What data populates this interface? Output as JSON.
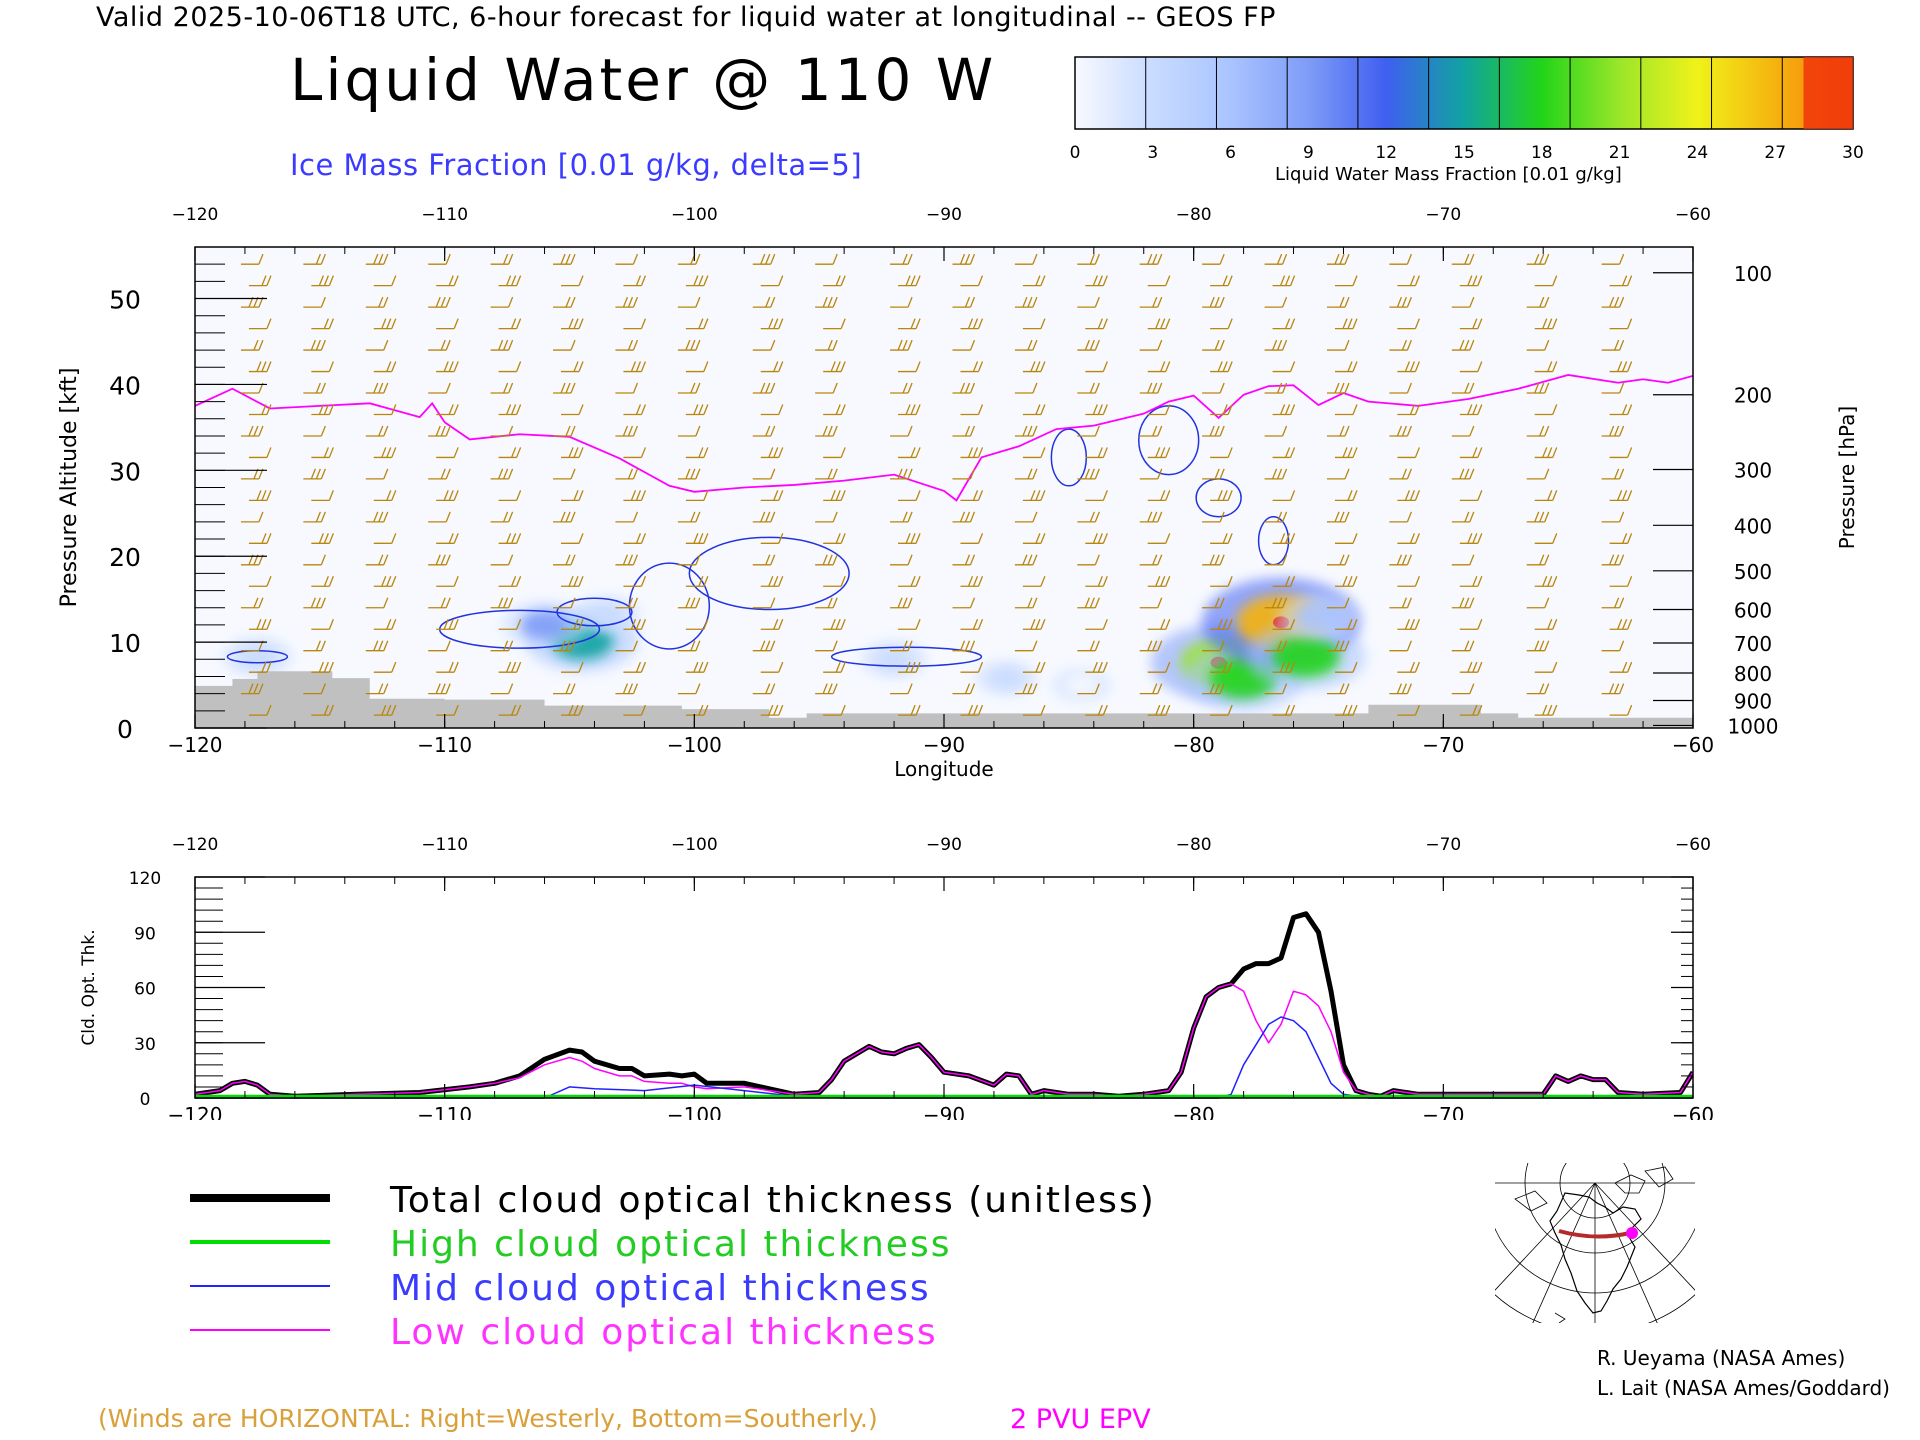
{
  "header": {
    "title": "Valid 2025-10-06T18 UTC, 6-hour forecast for liquid water at longitudinal -- GEOS FP",
    "main_title": "Liquid Water @ 110 W",
    "subtitle": "Ice Mass Fraction [0.01 g/kg, delta=5]"
  },
  "colorbar": {
    "label": "Liquid Water Mass Fraction [0.01 g/kg]",
    "ticks": [
      "0",
      "3",
      "6",
      "9",
      "12",
      "15",
      "18",
      "21",
      "24",
      "27",
      "30"
    ],
    "colors": [
      "#f7f9ff",
      "#c9dbff",
      "#a9c4ff",
      "#7f9cf7",
      "#3f5ff0",
      "#11a3a0",
      "#22d41a",
      "#9ae62a",
      "#f0f21a",
      "#f5b30f",
      "#f5760a"
    ]
  },
  "chart_data": [
    {
      "type": "heatmap",
      "name": "cross-section",
      "xlabel": "Longitude",
      "ylabel": "Pressure Altitude [kft]",
      "y2label": "Pressure [hPa]",
      "xlim": [
        -120,
        -60
      ],
      "ylim": [
        0,
        56
      ],
      "x_ticks": [
        "-120",
        "-110",
        "-100",
        "-90",
        "-80",
        "-70",
        "-60"
      ],
      "y_ticks": [
        "0",
        "10",
        "20",
        "30",
        "40",
        "50"
      ],
      "pressure_ticks": [
        {
          "label": "100",
          "alt": 53.0
        },
        {
          "label": "200",
          "alt": 38.8
        },
        {
          "label": "300",
          "alt": 30.1
        },
        {
          "label": "400",
          "alt": 23.6
        },
        {
          "label": "500",
          "alt": 18.3
        },
        {
          "label": "600",
          "alt": 13.8
        },
        {
          "label": "700",
          "alt": 9.9
        },
        {
          "label": "800",
          "alt": 6.4
        },
        {
          "label": "900",
          "alt": 3.2
        },
        {
          "label": "1000",
          "alt": 0.3
        }
      ],
      "epv_2pvu_line": {
        "color": "#ff00ff",
        "lon": [
          -120,
          -118.5,
          -117,
          -115,
          -113,
          -111,
          -110.5,
          -110,
          -109,
          -107,
          -105,
          -103,
          -101,
          -100,
          -98,
          -96,
          -94,
          -92,
          -90,
          -89.5,
          -88.5,
          -87,
          -85.5,
          -84,
          -82,
          -81,
          -80,
          -79,
          -78,
          -77,
          -76,
          -75,
          -74,
          -73,
          -71,
          -69,
          -67,
          -66,
          -65,
          -63,
          -62,
          -61,
          -60
        ],
        "alt": [
          37.5,
          39.5,
          37.2,
          37.5,
          37.8,
          36.2,
          37.8,
          35.6,
          33.6,
          34.2,
          33.9,
          31.4,
          28.2,
          27.5,
          28.0,
          28.3,
          28.8,
          29.5,
          27.6,
          26.5,
          31.5,
          32.8,
          34.8,
          35.2,
          36.6,
          38.0,
          38.7,
          36.1,
          38.8,
          39.8,
          39.9,
          37.6,
          39.0,
          38.0,
          37.5,
          38.3,
          39.5,
          40.3,
          41.1,
          40.2,
          40.6,
          40.2,
          41.0
        ]
      },
      "terrain": {
        "color": "#c0c0c0",
        "lon": [
          -120,
          -118.5,
          -118.5,
          -117.5,
          -117.5,
          -114.5,
          -114.5,
          -113,
          -113,
          -110,
          -110,
          -106,
          -106,
          -100.5,
          -100.5,
          -97,
          -97,
          -95.5,
          -95.5,
          -79.5,
          -79.5,
          -73,
          -73,
          -68.5,
          -68.5,
          -67,
          -67,
          -60
        ],
        "alt": [
          4.9,
          4.9,
          5.7,
          5.7,
          6.6,
          6.6,
          5.8,
          5.8,
          3.4,
          3.4,
          3.3,
          3.3,
          2.6,
          2.6,
          2.2,
          2.2,
          1.2,
          1.2,
          1.7,
          1.7,
          1.7,
          1.7,
          2.7,
          2.7,
          1.7,
          1.7,
          1.2,
          1.2
        ]
      },
      "liquid_water_blobs": [
        {
          "lon": -104.5,
          "alt": 10.2,
          "value": 16
        },
        {
          "lon": -106.0,
          "alt": 12.0,
          "value": 9
        },
        {
          "lon": -103.5,
          "alt": 13.2,
          "value": 4
        },
        {
          "lon": -117.5,
          "alt": 8.3,
          "value": 5
        },
        {
          "lon": -92.0,
          "alt": 8.0,
          "value": 4
        },
        {
          "lon": -87.5,
          "alt": 5.8,
          "value": 3
        },
        {
          "lon": -84.5,
          "alt": 5.0,
          "value": 2
        },
        {
          "lon": -79.0,
          "alt": 7.6,
          "value": 22
        },
        {
          "lon": -78.0,
          "alt": 5.8,
          "value": 18
        },
        {
          "lon": -76.5,
          "alt": 12.3,
          "value": 28
        },
        {
          "lon": -75.5,
          "alt": 8.3,
          "value": 18
        },
        {
          "lon": -75.0,
          "alt": 13.0,
          "value": 8
        }
      ],
      "wind_barbs": {
        "color": "#b8860b",
        "columns_lon": [
          -118,
          -115.5,
          -113,
          -110.5,
          -108,
          -105.5,
          -103,
          -100.5,
          -97.5,
          -95,
          -92,
          -89.5,
          -87,
          -84.5,
          -82,
          -79.5,
          -77,
          -74.5,
          -72,
          -69.5,
          -66.5,
          -63.5
        ],
        "levels_alt": [
          54,
          46,
          38,
          30,
          22,
          14,
          6
        ]
      }
    },
    {
      "type": "line",
      "name": "cloud-optical-thickness",
      "xlabel": "Longitude",
      "ylabel": "Cld. Opt. Thk.",
      "xlim": [
        -120,
        -60
      ],
      "ylim": [
        0,
        120
      ],
      "x_ticks": [
        "-120",
        "-110",
        "-100",
        "-90",
        "-80",
        "-70",
        "-60"
      ],
      "y_ticks": [
        "0",
        "30",
        "60",
        "90",
        "120"
      ],
      "series": [
        {
          "name": "Total cloud optical thickness (unitless)",
          "color": "#000000",
          "width": 5,
          "lon": [
            -120,
            -119,
            -118.5,
            -118,
            -117.5,
            -117,
            -116,
            -113.5,
            -111,
            -109,
            -108,
            -107,
            -106,
            -105,
            -104.5,
            -104,
            -103,
            -102.5,
            -102,
            -101,
            -100.5,
            -100,
            -99.5,
            -98,
            -96,
            -95,
            -94.5,
            -94,
            -93,
            -92.5,
            -92,
            -91.5,
            -91,
            -90.5,
            -90,
            -89,
            -88,
            -87.5,
            -87,
            -86.5,
            -86,
            -85,
            -84,
            -83,
            -82,
            -81,
            -80.5,
            -80,
            -79.5,
            -79,
            -78.5,
            -78,
            -77.5,
            -77,
            -76.5,
            -76,
            -75.5,
            -75,
            -74.5,
            -74,
            -73.5,
            -73,
            -72.5,
            -72,
            -71,
            -68,
            -66,
            -65.5,
            -65,
            -64.5,
            -64,
            -63.5,
            -63,
            -62,
            -60.5,
            -60
          ],
          "values": [
            2,
            4,
            8,
            9,
            7,
            2,
            1,
            2,
            3,
            6,
            8,
            12,
            21,
            26,
            25,
            20,
            16,
            16,
            12,
            13,
            12,
            13,
            8,
            8,
            2,
            3,
            10,
            20,
            28,
            25,
            24,
            27,
            29,
            22,
            14,
            12,
            7,
            13,
            12,
            2,
            4,
            2,
            2,
            1,
            2,
            4,
            14,
            38,
            55,
            60,
            62,
            70,
            73,
            73,
            76,
            98,
            100,
            90,
            58,
            18,
            4,
            2,
            1,
            4,
            2,
            2,
            2,
            12,
            9,
            12,
            10,
            10,
            3,
            2,
            3,
            14
          ]
        },
        {
          "name": "High cloud optical thickness",
          "color": "#00dd00",
          "width": 3,
          "lon": [
            -120,
            -60
          ],
          "values": [
            1,
            1
          ]
        },
        {
          "name": "Mid cloud optical thickness",
          "color": "#2222ff",
          "width": 1.5,
          "lon": [
            -120,
            -110,
            -106,
            -105,
            -104,
            -102,
            -100,
            -98,
            -96,
            -94,
            -92,
            -90,
            -88,
            -86,
            -84,
            -82,
            -80,
            -79,
            -78.5,
            -78,
            -77,
            -76.5,
            -76,
            -75.5,
            -75,
            -74.5,
            -74,
            -73,
            -72,
            -60
          ],
          "values": [
            0,
            0,
            0,
            6,
            5,
            4,
            7,
            4,
            1,
            0,
            0,
            0,
            0,
            0,
            0,
            0,
            0,
            0,
            2,
            18,
            40,
            44,
            42,
            36,
            22,
            8,
            2,
            0,
            0,
            0
          ]
        },
        {
          "name": "Low cloud optical thickness",
          "color": "#ff00ff",
          "width": 1.5,
          "lon": [
            -120,
            -119,
            -118.5,
            -118,
            -117.5,
            -117,
            -116,
            -113.5,
            -111,
            -109,
            -108,
            -107,
            -106,
            -105,
            -104.5,
            -104,
            -103,
            -102.5,
            -102,
            -101,
            -100.5,
            -100,
            -99.5,
            -98,
            -96,
            -95,
            -94.5,
            -94,
            -93,
            -92.5,
            -92,
            -91.5,
            -91,
            -90.5,
            -90,
            -89,
            -88,
            -87.5,
            -87,
            -86.5,
            -86,
            -85,
            -84,
            -83,
            -82,
            -81,
            -80.5,
            -80,
            -79.5,
            -79,
            -78.5,
            -78,
            -77.5,
            -77,
            -76.5,
            -76,
            -75.5,
            -75,
            -74.5,
            -74,
            -73.5,
            -73,
            -72.5,
            -72,
            -71,
            -68,
            -66,
            -65.5,
            -65,
            -64.5,
            -64,
            -63.5,
            -63,
            -62,
            -60.5,
            -60
          ],
          "values": [
            2,
            4,
            8,
            9,
            7,
            2,
            1,
            2,
            3,
            6,
            8,
            11,
            18,
            22,
            20,
            16,
            12,
            12,
            9,
            8,
            8,
            6,
            5,
            6,
            2,
            3,
            10,
            20,
            28,
            25,
            24,
            27,
            29,
            22,
            14,
            12,
            7,
            13,
            12,
            2,
            4,
            2,
            2,
            1,
            2,
            4,
            14,
            38,
            55,
            60,
            62,
            58,
            42,
            30,
            40,
            58,
            56,
            50,
            36,
            14,
            4,
            2,
            1,
            4,
            2,
            2,
            2,
            12,
            9,
            12,
            10,
            10,
            3,
            2,
            3,
            14
          ]
        }
      ]
    }
  ],
  "legend": {
    "total": "Total cloud optical thickness (unitless)",
    "high": "High cloud optical thickness",
    "mid": "Mid cloud optical thickness",
    "low": "Low cloud optical thickness"
  },
  "notes": {
    "winds": "(Winds are HORIZONTAL: Right=Westerly, Bottom=Southerly.)",
    "pvu": "2 PVU EPV"
  },
  "credits": {
    "line1": "R. Ueyama (NASA Ames)",
    "line2": "L. Lait (NASA Ames/Goddard)"
  }
}
